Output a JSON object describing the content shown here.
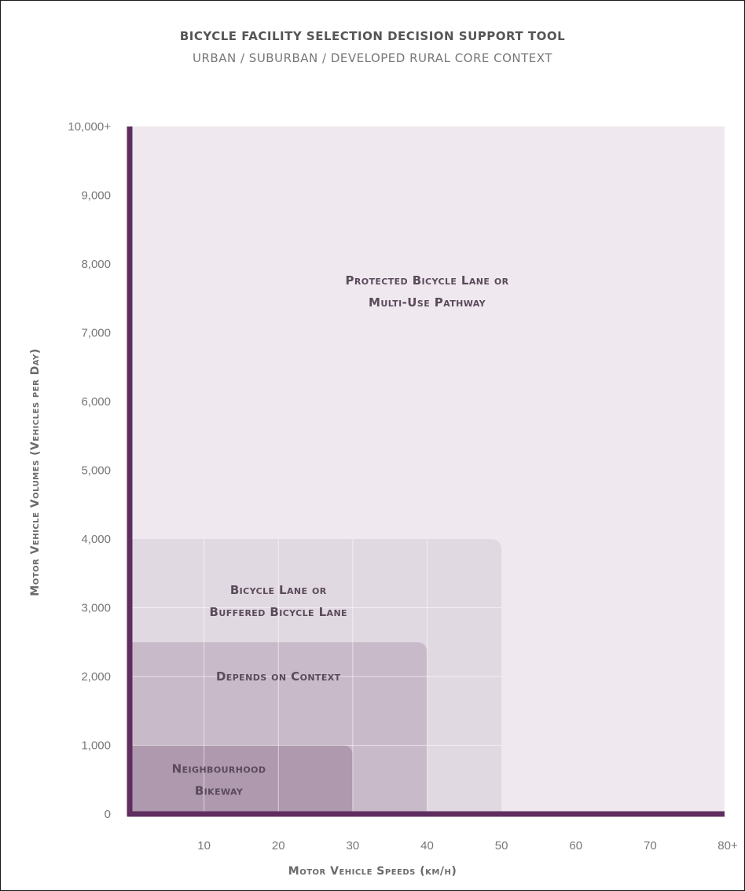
{
  "chart_data": {
    "type": "area",
    "title": "BICYCLE FACILITY SELECTION DECISION SUPPORT TOOL",
    "subtitle": "URBAN / SUBURBAN / DEVELOPED RURAL CORE CONTEXT",
    "xlabel": "Motor Vehicle Speeds (km/h)",
    "ylabel": "Motor Vehicle Volumes (Vehicles per Day)",
    "x_ticks": [
      "10",
      "20",
      "30",
      "40",
      "50",
      "60",
      "70",
      "80+"
    ],
    "y_ticks": [
      "0",
      "1,000",
      "2,000",
      "3,000",
      "4,000",
      "5,000",
      "6,000",
      "7,000",
      "8,000",
      "9,000",
      "10,000+"
    ],
    "xlim": [
      0,
      80
    ],
    "ylim": [
      0,
      10000
    ],
    "grid": true,
    "zones": [
      {
        "name": "protected",
        "label_lines": [
          "Protected Bicycle Lane or",
          "Multi-Use Pathway"
        ],
        "max_speed": 80,
        "max_volume": 10000,
        "color": "#efe9ef",
        "label_at": [
          40,
          7600
        ]
      },
      {
        "name": "bicycle-lane",
        "label_lines": [
          "Bicycle Lane or",
          "Buffered Bicycle Lane"
        ],
        "max_speed": 50,
        "max_volume": 4000,
        "color": "#e1d9e2",
        "label_at": [
          20,
          3100
        ]
      },
      {
        "name": "depends",
        "label_lines": [
          "Depends on Context"
        ],
        "max_speed": 40,
        "max_volume": 2500,
        "color": "#c9bac9",
        "label_at": [
          20,
          2000
        ]
      },
      {
        "name": "neighbourhood",
        "label_lines": [
          "Neighbourhood",
          "Bikeway"
        ],
        "max_speed": 30,
        "max_volume": 1000,
        "color": "#ae99ae",
        "label_at": [
          12,
          500
        ]
      }
    ],
    "axis_color": "#5f2d5f",
    "text_color": "#5a4a5a"
  }
}
